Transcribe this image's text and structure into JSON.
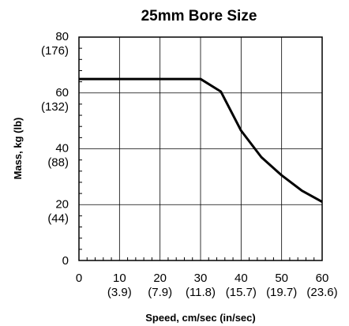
{
  "chart_data": {
    "type": "line",
    "title": "25mm Bore Size",
    "xlabel": "Speed, cm/sec (in/sec)",
    "ylabel": "Mass, kg (lb)",
    "xlim": [
      0,
      60
    ],
    "ylim": [
      0,
      80
    ],
    "grid": true,
    "x_ticks": [
      {
        "value": 0,
        "label": "0",
        "sublabel": ""
      },
      {
        "value": 10,
        "label": "10",
        "sublabel": "(3.9)"
      },
      {
        "value": 20,
        "label": "20",
        "sublabel": "(7.9)"
      },
      {
        "value": 30,
        "label": "30",
        "sublabel": "(11.8)"
      },
      {
        "value": 40,
        "label": "40",
        "sublabel": "(15.7)"
      },
      {
        "value": 50,
        "label": "50",
        "sublabel": "(19.7)"
      },
      {
        "value": 60,
        "label": "60",
        "sublabel": "(23.6)"
      }
    ],
    "y_ticks": [
      {
        "value": 0,
        "label": "0",
        "sublabel": ""
      },
      {
        "value": 20,
        "label": "20",
        "sublabel": "(44)"
      },
      {
        "value": 40,
        "label": "40",
        "sublabel": "(88)"
      },
      {
        "value": 60,
        "label": "60",
        "sublabel": "(132)"
      },
      {
        "value": 80,
        "label": "80",
        "sublabel": "(176)"
      }
    ],
    "series": [
      {
        "x": [
          0,
          30,
          35,
          40,
          45,
          50,
          55,
          60
        ],
        "y": [
          65,
          65,
          60.5,
          46.5,
          37,
          30.5,
          25,
          21
        ]
      }
    ]
  }
}
